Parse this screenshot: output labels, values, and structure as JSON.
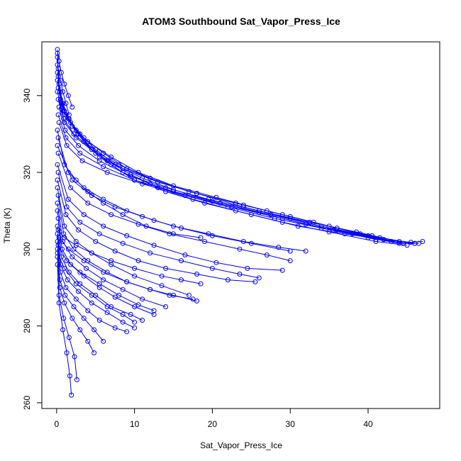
{
  "chart_data": {
    "type": "scatter",
    "title": "ATOM3 Southbound Sat_Vapor_Press_Ice",
    "xlabel": "Sat_Vapor_Press_Ice",
    "ylabel": "Theta (K)",
    "xlim": [
      -1.9,
      49.2
    ],
    "ylim": [
      258.5,
      354
    ],
    "x_ticks": [
      0,
      10,
      20,
      30,
      40
    ],
    "y_ticks": [
      260,
      280,
      300,
      320,
      340
    ],
    "grid": false,
    "line_color": "#0000ff",
    "series": [
      {
        "x": [
          0.1,
          0.3,
          0.8,
          1.6,
          2.8,
          4.5,
          7.0,
          10.0,
          14.0,
          19.0,
          25.0,
          31.0,
          37.0,
          42.0,
          45.5,
          47.0
        ],
        "y": [
          350,
          343,
          338,
          334,
          330,
          326,
          322,
          318,
          315,
          312,
          309,
          306,
          304,
          302.5,
          301.8,
          302
        ]
      },
      {
        "x": [
          0.1,
          0.4,
          1.0,
          2.0,
          3.5,
          5.5,
          8.5,
          12.0,
          16.5,
          22.0,
          28.0,
          34.0,
          40.0,
          44.0,
          46.5
        ],
        "y": [
          348,
          341,
          336,
          332,
          328,
          324,
          320,
          317,
          314,
          311,
          308,
          305.5,
          303,
          301.5,
          301.5
        ]
      },
      {
        "x": [
          0.1,
          0.5,
          1.2,
          2.5,
          4.2,
          6.5,
          9.5,
          13.0,
          17.5,
          23.0,
          29.0,
          35.0,
          41.0,
          45.0
        ],
        "y": [
          346,
          339,
          335,
          331,
          327,
          323,
          319.5,
          316,
          313,
          310,
          307,
          304.5,
          302,
          301
        ]
      },
      {
        "x": [
          0.2,
          0.6,
          1.5,
          3.0,
          5.0,
          7.5,
          11.0,
          15.0,
          20.0,
          26.0,
          32.0,
          38.0,
          43.0,
          46.0
        ],
        "y": [
          345,
          338,
          334,
          330,
          326,
          322,
          318.5,
          315.5,
          312.5,
          309.5,
          306.5,
          304,
          302,
          301.5
        ]
      },
      {
        "x": [
          0.1,
          0.7,
          1.8,
          3.5,
          6.0,
          9.0,
          13.0,
          18.0,
          24.0,
          30.0,
          36.0,
          42.0
        ],
        "y": [
          344,
          337,
          333,
          329,
          325,
          321,
          317.5,
          314.5,
          311,
          308,
          305,
          302.5
        ]
      },
      {
        "x": [
          0.2,
          0.8,
          2.0,
          4.0,
          7.0,
          10.5,
          15.0,
          20.5,
          27.0,
          33.0,
          39.0,
          44.5
        ],
        "y": [
          342,
          336,
          332,
          328,
          324,
          320,
          316.5,
          313.5,
          310,
          307,
          304,
          301.5
        ]
      },
      {
        "x": [
          0.1,
          0.9,
          2.2,
          4.5,
          8.0,
          12.0,
          17.0,
          23.0,
          29.0,
          35.0,
          40.5
        ],
        "y": [
          341,
          334,
          330,
          326,
          322,
          318.5,
          315,
          312,
          309,
          306,
          303.5
        ]
      },
      {
        "x": [
          0.2,
          1.0,
          2.5,
          5.0,
          8.5,
          13.0,
          18.0,
          24.0,
          30.0,
          36.0,
          41.5,
          46.0
        ],
        "y": [
          339,
          333,
          329,
          325,
          321,
          317.5,
          314.5,
          311.5,
          308.5,
          305.5,
          303,
          301.5
        ]
      },
      {
        "x": [
          0.3,
          1.1,
          2.8,
          5.5,
          9.5,
          14.0,
          19.5,
          26.0,
          32.5,
          38.5,
          44.0
        ],
        "y": [
          337,
          331,
          327,
          323,
          319,
          316,
          313,
          310,
          307,
          304.5,
          302
        ]
      },
      {
        "x": [
          0.2,
          1.2,
          3.0,
          6.0,
          10.0,
          15.0,
          21.0,
          27.5,
          34.0,
          40.0
        ],
        "y": [
          335,
          329,
          325,
          321.5,
          318,
          315,
          312,
          309,
          306,
          303.5
        ]
      },
      {
        "x": [
          0.3,
          1.3,
          3.3,
          6.5,
          11.0,
          16.5,
          22.5,
          29.0,
          35.5,
          41.0
        ],
        "y": [
          333,
          327,
          323,
          320,
          317,
          314,
          311,
          308,
          305,
          302.5
        ]
      },
      {
        "x": [
          0.1,
          1.0,
          2.5,
          4.0,
          6.0,
          8.5,
          11.5,
          15.0,
          18.5
        ],
        "y": [
          331,
          322,
          318,
          315,
          312,
          309,
          306,
          304,
          303
        ]
      },
      {
        "x": [
          0.2,
          1.5,
          3.5,
          6.0,
          9.0,
          12.5,
          16.0,
          20.0,
          25.0,
          30.0
        ],
        "y": [
          329,
          320,
          316,
          313,
          310,
          307.5,
          305.5,
          303.5,
          301.5,
          299.5
        ]
      },
      {
        "x": [
          0.1,
          2.0,
          4.5,
          7.5,
          11.0,
          15.0,
          19.5,
          24.0,
          28.5,
          32.0
        ],
        "y": [
          327,
          318,
          314,
          311,
          308.5,
          306,
          304,
          302,
          300.5,
          299.5
        ]
      },
      {
        "x": [
          0.2,
          1.8,
          4.0,
          7.0,
          10.5,
          14.5,
          19.0,
          23.5,
          27.0,
          30.0
        ],
        "y": [
          325,
          316,
          312,
          309,
          306.5,
          304,
          302,
          300,
          298.5,
          297
        ]
      },
      {
        "x": [
          0.1,
          1.5,
          3.5,
          6.0,
          9.0,
          12.5,
          16.5,
          20.5,
          24.5,
          29.0
        ],
        "y": [
          322,
          313,
          309,
          306,
          303.5,
          301,
          298.5,
          296.5,
          295,
          294.5
        ]
      },
      {
        "x": [
          0.2,
          1.3,
          3.0,
          5.5,
          8.5,
          12.0,
          16.0,
          20.0,
          23.5,
          26.0
        ],
        "y": [
          320,
          311,
          307,
          304,
          301.5,
          299,
          297,
          295,
          293.5,
          292.5
        ]
      },
      {
        "x": [
          0.1,
          1.2,
          2.8,
          5.0,
          7.5,
          10.5,
          14.0,
          18.0,
          22.0,
          25.5
        ],
        "y": [
          318,
          309,
          305,
          302,
          299.5,
          297,
          295,
          293.5,
          292,
          291.5
        ]
      },
      {
        "x": [
          0.1,
          1.0,
          2.5,
          4.5,
          7.0,
          10.0,
          13.5,
          17.0
        ],
        "y": [
          316,
          306,
          302,
          299,
          296,
          293,
          290.5,
          288
        ]
      },
      {
        "x": [
          0.2,
          0.9,
          2.2,
          4.0,
          6.5,
          9.0,
          12.0,
          15.0,
          18.0
        ],
        "y": [
          314,
          304,
          300,
          297,
          294,
          291.5,
          289.5,
          288,
          286.5
        ]
      },
      {
        "x": [
          0.1,
          0.8,
          2.0,
          3.8,
          6.0,
          8.5,
          11.0,
          14.0
        ],
        "y": [
          312,
          302,
          298,
          295,
          292,
          289.5,
          287,
          285
        ]
      },
      {
        "x": [
          0.1,
          0.7,
          1.8,
          3.5,
          5.5,
          7.5,
          10.0,
          12.5
        ],
        "y": [
          310,
          300,
          296,
          293,
          290,
          287.5,
          285,
          283
        ]
      },
      {
        "x": [
          0.2,
          0.6,
          1.6,
          3.0,
          5.0,
          7.0,
          9.5,
          11.0
        ],
        "y": [
          308,
          298,
          294,
          291,
          288,
          285,
          283,
          281.5
        ]
      },
      {
        "x": [
          0.1,
          0.5,
          1.4,
          2.8,
          4.5,
          6.5,
          8.5,
          10.0
        ],
        "y": [
          306,
          296,
          292,
          289,
          286,
          283.5,
          281,
          279.5
        ]
      },
      {
        "x": [
          0.1,
          0.5,
          1.2,
          2.5,
          4.0,
          5.5,
          7.5,
          9.0
        ],
        "y": [
          304,
          294,
          290,
          287,
          284,
          281.5,
          279.5,
          278.5
        ]
      },
      {
        "x": [
          0.1,
          0.4,
          1.1,
          2.2,
          3.5,
          4.8,
          6.0
        ],
        "y": [
          302,
          292,
          288,
          285,
          282,
          279,
          276
        ]
      },
      {
        "x": [
          0.1,
          0.4,
          1.0,
          2.0,
          3.0,
          4.0,
          4.8
        ],
        "y": [
          300,
          290,
          286,
          282,
          279,
          276,
          273
        ]
      },
      {
        "x": [
          0.1,
          0.3,
          0.9,
          1.6,
          2.3,
          2.6
        ],
        "y": [
          298,
          288,
          282,
          277,
          272,
          266
        ]
      },
      {
        "x": [
          0.1,
          0.3,
          0.8,
          1.3,
          1.7,
          1.9
        ],
        "y": [
          296,
          286,
          279,
          273,
          267,
          262
        ]
      },
      {
        "x": [
          0.2,
          1.0,
          2.5,
          4.5,
          7.0,
          10.0,
          13.5,
          16.0,
          18.5
        ],
        "y": [
          305,
          303,
          301,
          299,
          297,
          295,
          293,
          292,
          291
        ]
      },
      {
        "x": [
          0.3,
          1.5,
          3.5,
          6.0,
          9.0,
          12.0,
          14.5,
          17.5
        ],
        "y": [
          303,
          300,
          297,
          294,
          291.5,
          289.5,
          288,
          287
        ]
      },
      {
        "x": [
          0.2,
          1.3,
          3.0,
          5.5,
          8.0,
          10.5,
          12.5
        ],
        "y": [
          301,
          297,
          294,
          291,
          288,
          285.5,
          284
        ]
      },
      {
        "x": [
          0.1,
          1.0,
          2.5,
          4.5,
          6.5,
          8.5,
          10.0
        ],
        "y": [
          299,
          295,
          291,
          288,
          285,
          283,
          281
        ]
      },
      {
        "x": [
          0.1,
          0.3,
          0.6,
          1.0,
          1.5,
          2.0
        ],
        "y": [
          352,
          349,
          346,
          343,
          340,
          337
        ]
      },
      {
        "x": [
          0.1,
          0.2,
          0.5,
          0.8,
          1.2,
          1.6
        ],
        "y": [
          351,
          347,
          344,
          341,
          338,
          335
        ]
      }
    ]
  }
}
